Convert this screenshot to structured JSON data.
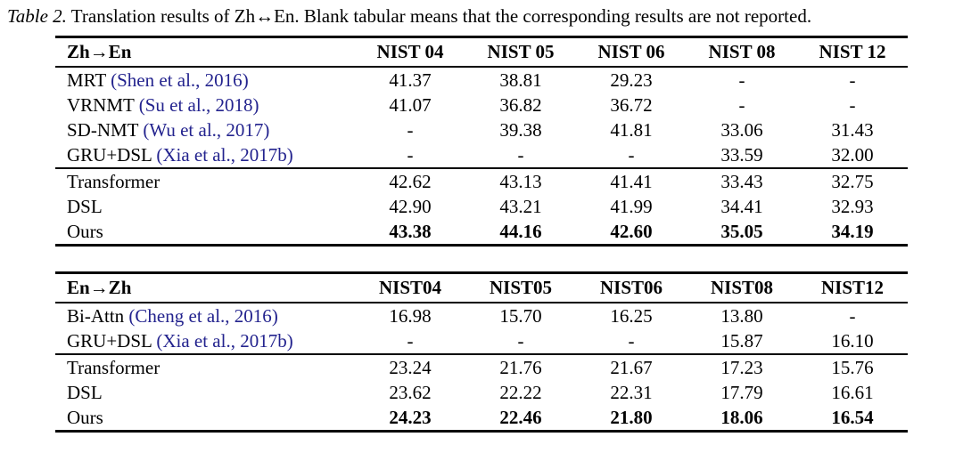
{
  "caption": {
    "label": "Table 2.",
    "text": "Translation results of Zh↔En. Blank tabular means that the corresponding results are not reported."
  },
  "colors": {
    "citation_link": "#23238E",
    "text": "#000000",
    "background": "#ffffff"
  },
  "tables": [
    {
      "header": [
        "Zh→En",
        "NIST 04",
        "NIST 05",
        "NIST 06",
        "NIST 08",
        "NIST 12"
      ],
      "groups": [
        {
          "rows": [
            {
              "method": "MRT",
              "citation": "Shen et al., 2016",
              "values": [
                "41.37",
                "38.81",
                "29.23",
                "-",
                "-"
              ]
            },
            {
              "method": "VRNMT",
              "citation": "Su et al., 2018",
              "values": [
                "41.07",
                "36.82",
                "36.72",
                "-",
                "-"
              ]
            },
            {
              "method": "SD-NMT",
              "citation": "Wu et al., 2017",
              "values": [
                "-",
                "39.38",
                "41.81",
                "33.06",
                "31.43"
              ]
            },
            {
              "method": "GRU+DSL",
              "citation": "Xia et al., 2017b",
              "values": [
                "-",
                "-",
                "-",
                "33.59",
                "32.00"
              ]
            }
          ]
        },
        {
          "rows": [
            {
              "method": "Transformer",
              "values": [
                "42.62",
                "43.13",
                "41.41",
                "33.43",
                "32.75"
              ]
            },
            {
              "method": "DSL",
              "values": [
                "42.90",
                "43.21",
                "41.99",
                "34.41",
                "32.93"
              ]
            },
            {
              "method": "Ours",
              "bold": true,
              "values": [
                "43.38",
                "44.16",
                "42.60",
                "35.05",
                "34.19"
              ]
            }
          ]
        }
      ]
    },
    {
      "header": [
        "En→Zh",
        "NIST04",
        "NIST05",
        "NIST06",
        "NIST08",
        "NIST12"
      ],
      "groups": [
        {
          "rows": [
            {
              "method": "Bi-Attn",
              "citation": "Cheng et al., 2016",
              "values": [
                "16.98",
                "15.70",
                "16.25",
                "13.80",
                "-"
              ]
            },
            {
              "method": "GRU+DSL",
              "citation": "Xia et al., 2017b",
              "values": [
                "-",
                "-",
                "-",
                "15.87",
                "16.10"
              ]
            }
          ]
        },
        {
          "rows": [
            {
              "method": "Transformer",
              "values": [
                "23.24",
                "21.76",
                "21.67",
                "17.23",
                "15.76"
              ]
            },
            {
              "method": "DSL",
              "values": [
                "23.62",
                "22.22",
                "22.31",
                "17.79",
                "16.61"
              ]
            },
            {
              "method": "Ours",
              "bold": true,
              "values": [
                "24.23",
                "22.46",
                "21.80",
                "18.06",
                "16.54"
              ]
            }
          ]
        }
      ]
    }
  ]
}
